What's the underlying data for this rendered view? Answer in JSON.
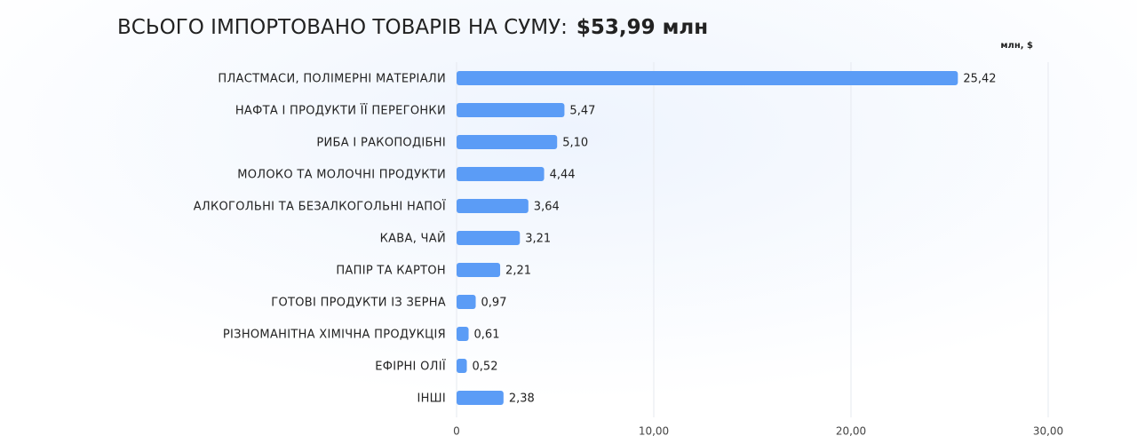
{
  "chart_data": {
    "type": "bar",
    "orientation": "horizontal",
    "title": "ВСЬОГО ІМПОРТОВАНО ТОВАРІВ НА СУМУ:",
    "title_value": "$53,99 млн",
    "unit_label": "млн, $",
    "categories": [
      "ПЛАСТМАСИ, ПОЛІМЕРНІ МАТЕРІАЛИ",
      "НАФТА І ПРОДУКТИ ЇЇ ПЕРЕГОНКИ",
      "РИБА І РАКОПОДІБНІ",
      "МОЛОКО ТА МОЛОЧНІ ПРОДУКТИ",
      "АЛКОГОЛЬНІ ТА БЕЗАЛКОГОЛЬНІ НАПОЇ",
      "КАВА, ЧАЙ",
      "ПАПІР ТА КАРТОН",
      "ГОТОВІ ПРОДУКТИ ІЗ ЗЕРНА",
      "РІЗНОМАНІТНА ХІМІЧНА ПРОДУКЦІЯ",
      "ЕФІРНІ ОЛІЇ",
      "ІНШІ"
    ],
    "values": [
      25.42,
      5.47,
      5.1,
      4.44,
      3.64,
      3.21,
      2.21,
      0.97,
      0.61,
      0.52,
      2.38
    ],
    "value_labels": [
      "25,42",
      "5,47",
      "5,10",
      "4,44",
      "3,64",
      "3,21",
      "2,21",
      "0,97",
      "0,61",
      "0,52",
      "2,38"
    ],
    "color": "#5b9cf6",
    "xlim": [
      0,
      30
    ],
    "xticks": [
      0,
      {
        "value": 10,
        "label": "10,00"
      },
      {
        "value": 20,
        "label": "20,00"
      },
      {
        "value": 30,
        "label": "30,00"
      }
    ],
    "grid": true
  }
}
